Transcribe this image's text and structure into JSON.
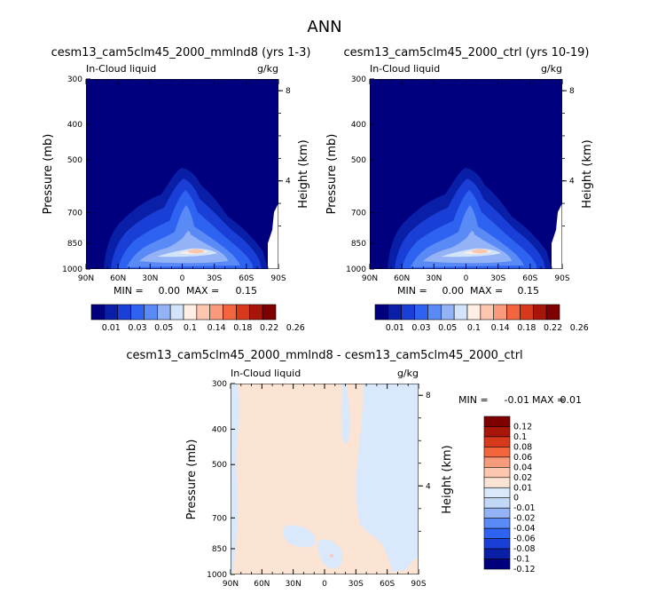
{
  "page_title": "ANN",
  "colors": {
    "palette12": [
      "#00007f",
      "#0a1fa8",
      "#1a3fd6",
      "#2e63f2",
      "#5a8af5",
      "#94b3f7",
      "#d3e3fa",
      "#fff0e3",
      "#fcc7ae",
      "#f79b7a",
      "#f2653d",
      "#d63a1a",
      "#a8160a",
      "#7f0000"
    ],
    "diff": [
      "#00007f",
      "#0a1fa8",
      "#1a3fd6",
      "#2e63f2",
      "#5a8af5",
      "#94b3f7",
      "#c2d8f7",
      "#d9e8fa",
      "#fbe4d3",
      "#fcc7ae",
      "#f79b7a",
      "#f2653d",
      "#d63a1a",
      "#a8160a",
      "#7f0000"
    ]
  },
  "chart_data": [
    {
      "type": "contour",
      "title": "cesm13_cam5clm45_2000_mmlnd8 (yrs 1-3)",
      "subtitle_left": "In-Cloud liquid",
      "subtitle_right": "g/kg",
      "ylabel": "Pressure (mb)",
      "ylabel_right": "Height (km)",
      "x_ticks": [
        "90N",
        "60N",
        "30N",
        "0",
        "30S",
        "60S",
        "90S"
      ],
      "y_ticks": [
        "300",
        "400",
        "500",
        "700",
        "850",
        "1000"
      ],
      "y_ticks_right": [
        "8",
        "4"
      ],
      "min_label": "MIN =",
      "min_value": "0.00",
      "max_label": "MAX =",
      "max_value": "0.15"
    },
    {
      "type": "contour",
      "title": "cesm13_cam5clm45_2000_ctrl (yrs 10-19)",
      "subtitle_left": "In-Cloud liquid",
      "subtitle_right": "g/kg",
      "ylabel": "Pressure (mb)",
      "ylabel_right": "Height (km)",
      "x_ticks": [
        "90N",
        "60N",
        "30N",
        "0",
        "30S",
        "60S",
        "90S"
      ],
      "y_ticks": [
        "300",
        "400",
        "500",
        "700",
        "850",
        "1000"
      ],
      "y_ticks_right": [
        "8",
        "4"
      ],
      "min_label": "MIN =",
      "min_value": "0.00",
      "max_label": "MAX =",
      "max_value": "0.15"
    },
    {
      "type": "contour",
      "title": "cesm13_cam5clm45_2000_mmlnd8 - cesm13_cam5clm45_2000_ctrl",
      "subtitle_left": "In-Cloud liquid",
      "subtitle_right": "g/kg",
      "ylabel": "Pressure (mb)",
      "ylabel_right": "Height (km)",
      "x_ticks": [
        "90N",
        "60N",
        "30N",
        "0",
        "30S",
        "60S",
        "90S"
      ],
      "y_ticks": [
        "300",
        "400",
        "500",
        "700",
        "850",
        "1000"
      ],
      "y_ticks_right": [
        "8",
        "4"
      ],
      "min_label": "MIN =",
      "min_value": "-0.01",
      "max_label": "MAX =",
      "max_value": "0.01"
    }
  ],
  "colorbar_top": {
    "labels": [
      "0.01",
      "0.03",
      "0.05",
      "0.1",
      "0.14",
      "0.18",
      "0.22",
      "0.26"
    ]
  },
  "colorbar_diff": {
    "labels": [
      "0.12",
      "0.1",
      "0.08",
      "0.06",
      "0.04",
      "0.02",
      "0.01",
      "0",
      "-0.01",
      "-0.02",
      "-0.04",
      "-0.06",
      "-0.08",
      "-0.1",
      "-0.12"
    ]
  }
}
